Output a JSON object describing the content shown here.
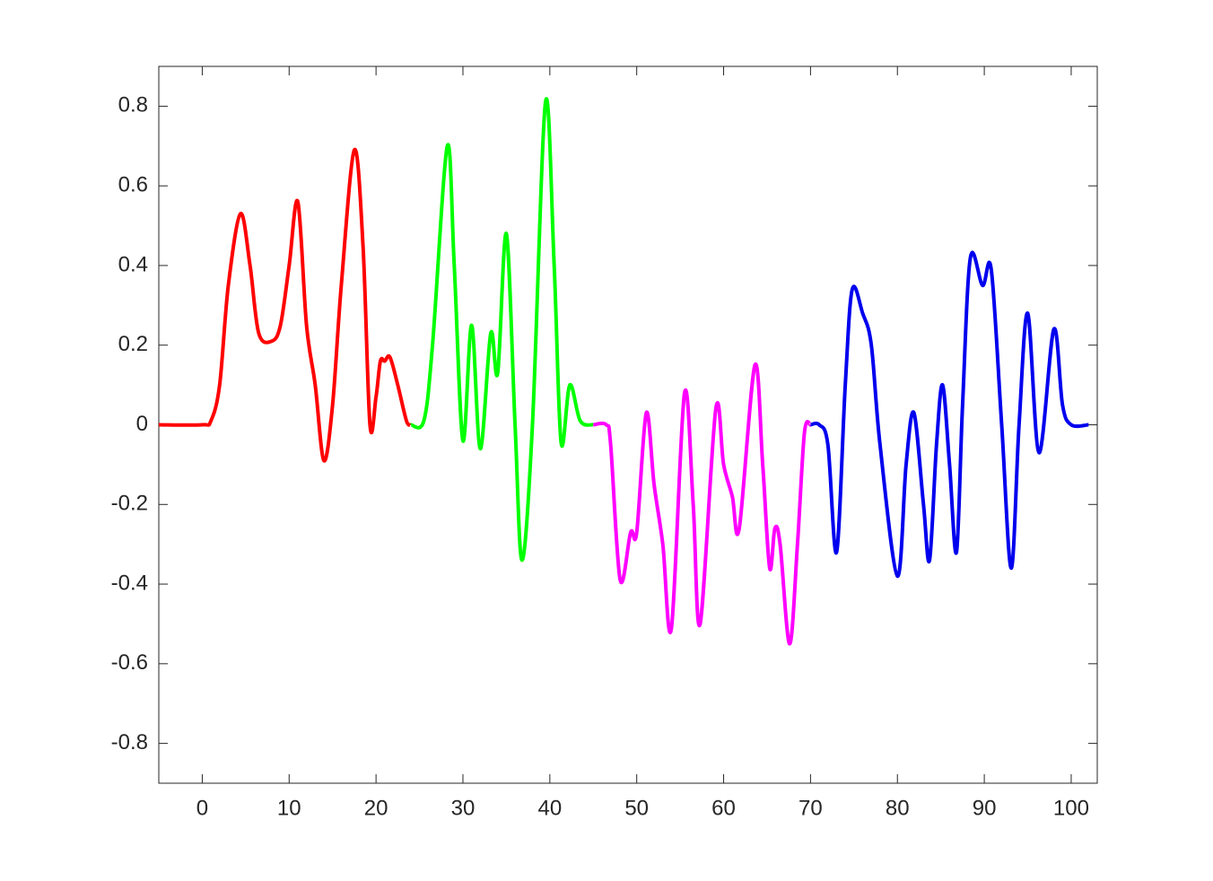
{
  "chart_data": {
    "type": "line",
    "xlim": [
      -5,
      103
    ],
    "ylim": [
      -0.9,
      0.9
    ],
    "xticks": [
      0,
      10,
      20,
      30,
      40,
      50,
      60,
      70,
      80,
      90,
      100
    ],
    "yticks": [
      -0.8,
      -0.6,
      -0.4,
      -0.2,
      0,
      0.2,
      0.4,
      0.6,
      0.8
    ],
    "grid": false,
    "series": [
      {
        "color": "#ff0000",
        "x": [
          -5,
          0,
          1,
          2,
          3,
          4.4,
          5.5,
          6.5,
          8,
          9,
          10,
          11,
          12,
          13,
          14,
          15,
          16,
          17.5,
          18.5,
          19.3,
          20,
          20.5,
          21,
          21.6,
          22.5,
          23.5,
          24
        ],
        "values": [
          0,
          0,
          0.01,
          0.1,
          0.35,
          0.53,
          0.4,
          0.23,
          0.21,
          0.25,
          0.4,
          0.56,
          0.25,
          0.1,
          -0.09,
          0.05,
          0.35,
          0.69,
          0.45,
          0.0,
          0.07,
          0.16,
          0.16,
          0.17,
          0.1,
          0.01,
          0
        ]
      },
      {
        "color": "#00ff00",
        "x": [
          24,
          25.5,
          26.5,
          28.2,
          29,
          30,
          31,
          32,
          33.2,
          34,
          35,
          36,
          36.8,
          38,
          39.5,
          40.5,
          41.3,
          42.3,
          43.5,
          45
        ],
        "values": [
          0,
          0.01,
          0.2,
          0.7,
          0.4,
          -0.04,
          0.25,
          -0.06,
          0.23,
          0.13,
          0.48,
          0.0,
          -0.34,
          0.0,
          0.81,
          0.4,
          -0.045,
          0.1,
          0.01,
          0
        ]
      },
      {
        "color": "#ff00ff",
        "x": [
          45,
          46.5,
          47,
          48.1,
          49.3,
          50,
          51.1,
          52,
          53,
          54,
          55.5,
          56.5,
          57.3,
          59.1,
          60,
          61,
          61.8,
          63.6,
          64.5,
          65.3,
          65.9,
          66.5,
          67.6,
          68.5,
          69.3,
          70
        ],
        "values": [
          0,
          0,
          -0.05,
          -0.39,
          -0.27,
          -0.27,
          0.03,
          -0.15,
          -0.3,
          -0.51,
          0.08,
          -0.2,
          -0.5,
          0.04,
          -0.1,
          -0.18,
          -0.26,
          0.15,
          -0.1,
          -0.36,
          -0.26,
          -0.3,
          -0.55,
          -0.3,
          -0.02,
          0
        ]
      },
      {
        "color": "#0000ee",
        "x": [
          70,
          71,
          72,
          73,
          74,
          74.8,
          76,
          77,
          78,
          80,
          81,
          81.9,
          83,
          83.7,
          84.5,
          85.2,
          86,
          86.8,
          87.5,
          88.4,
          89.8,
          90.8,
          92,
          93.1,
          94,
          95,
          96.3,
          98,
          99,
          100,
          102
        ],
        "values": [
          0,
          0,
          -0.05,
          -0.32,
          0.1,
          0.34,
          0.28,
          0.2,
          -0.05,
          -0.38,
          -0.1,
          0.03,
          -0.2,
          -0.34,
          -0.05,
          0.1,
          -0.1,
          -0.32,
          0.05,
          0.42,
          0.35,
          0.39,
          0.0,
          -0.36,
          0.0,
          0.28,
          -0.07,
          0.24,
          0.05,
          0,
          0
        ]
      }
    ]
  }
}
